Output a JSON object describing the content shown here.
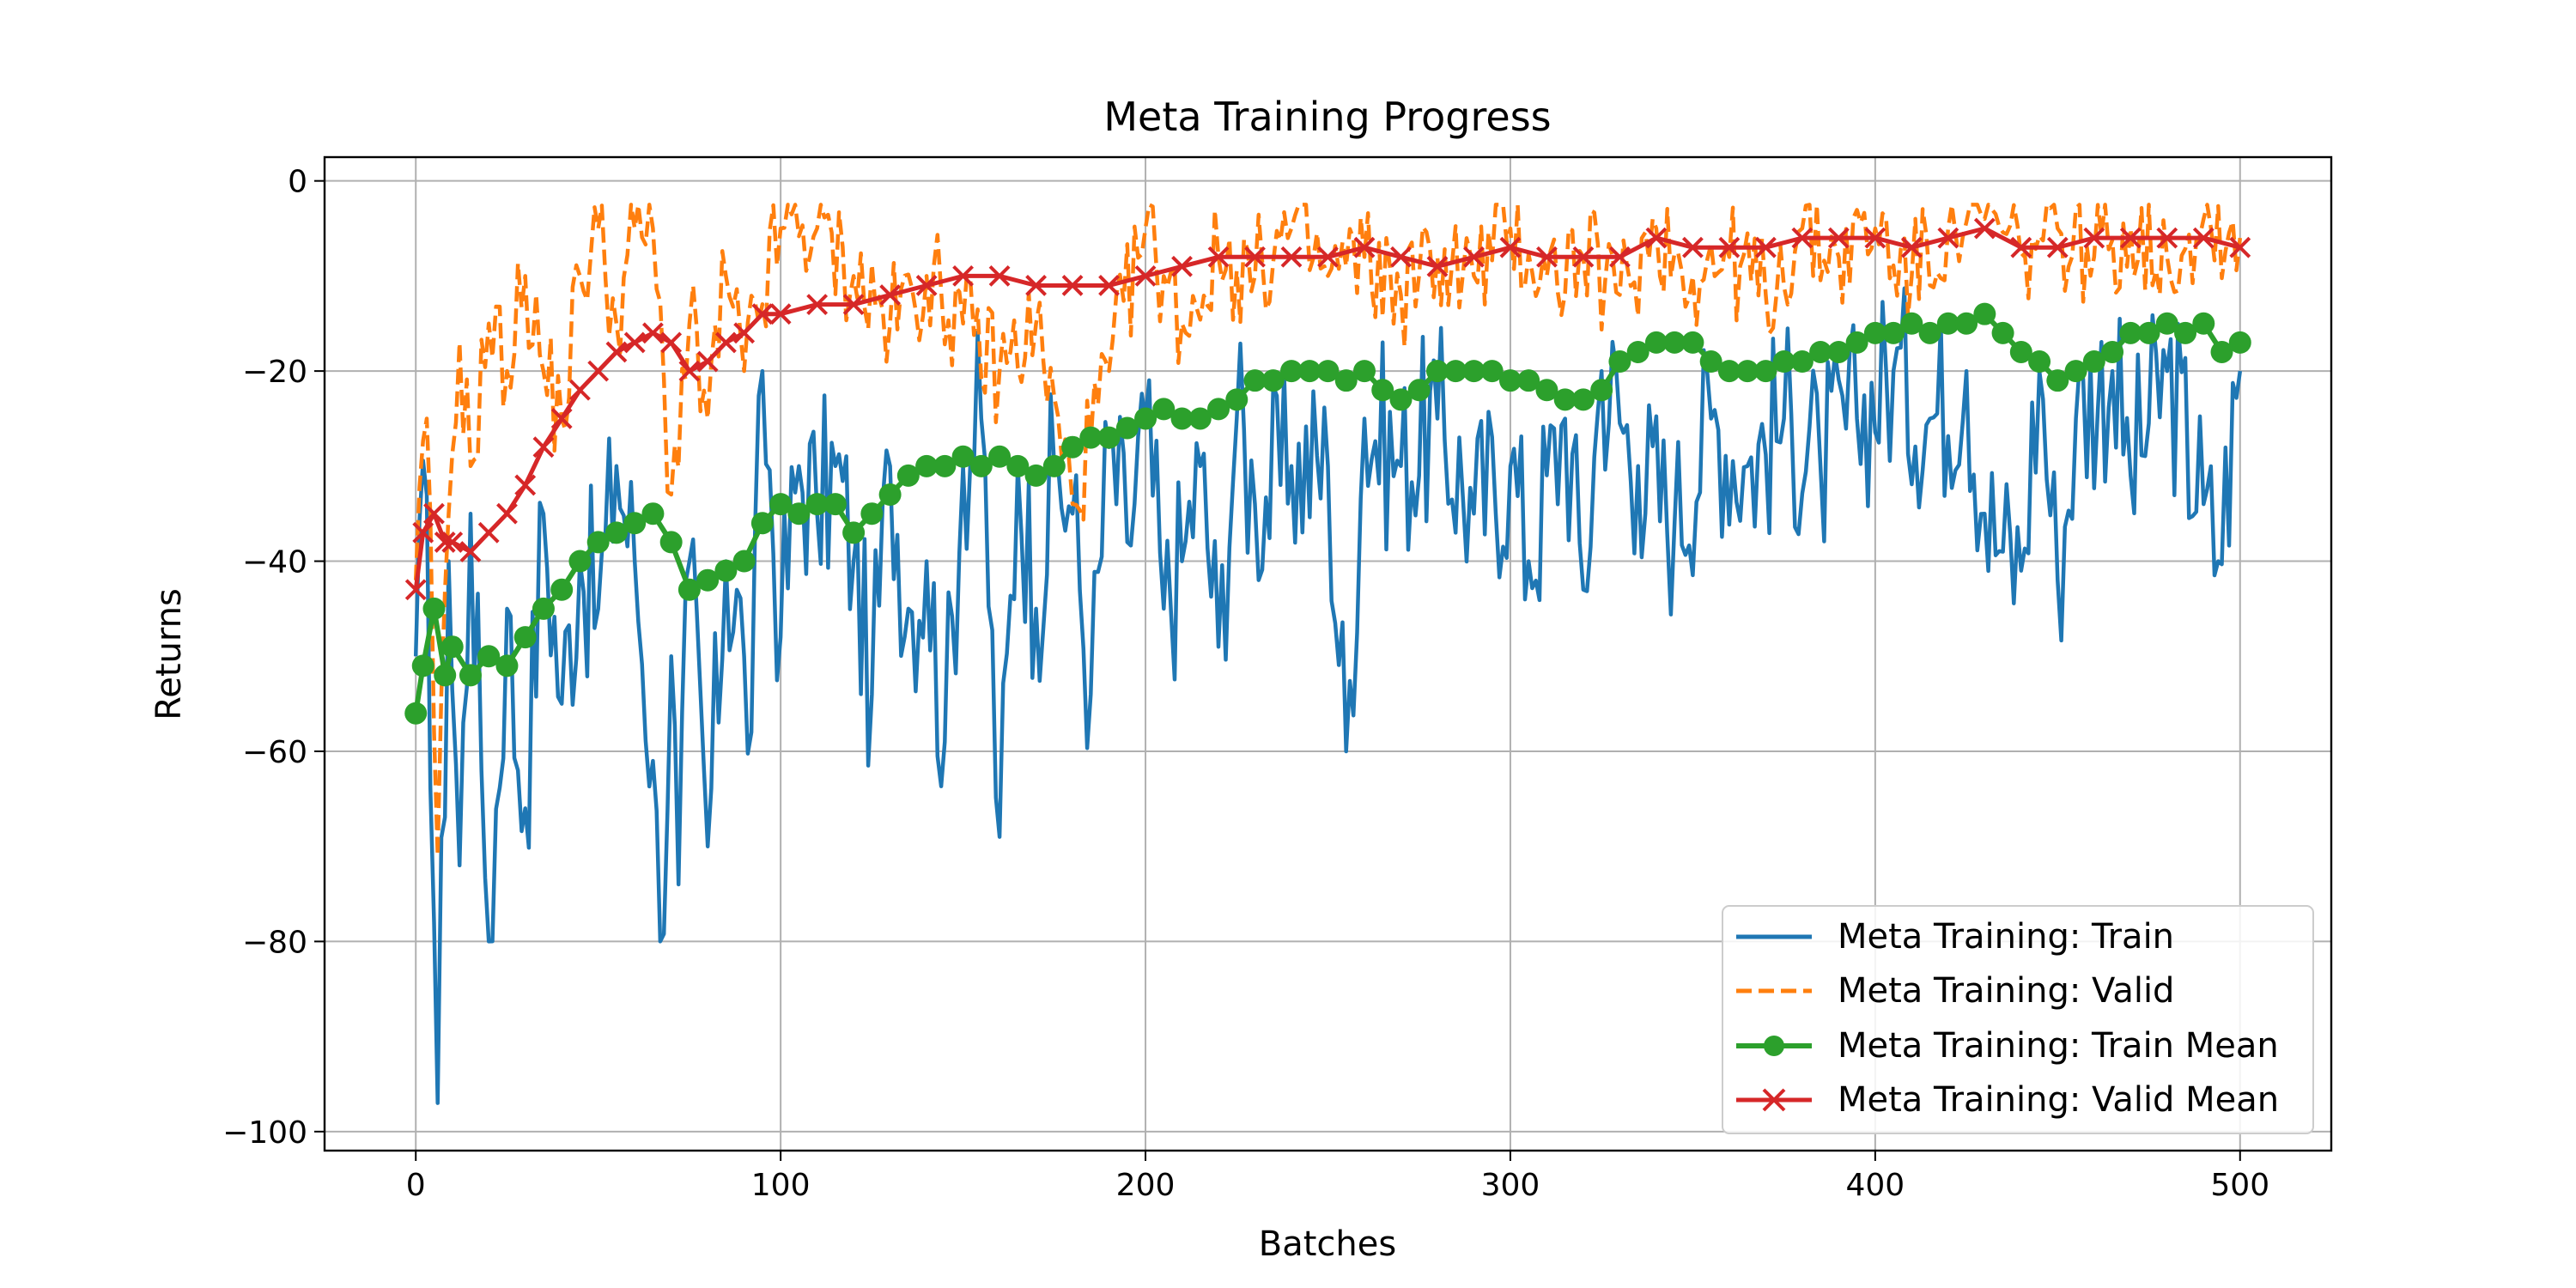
{
  "chart_data": {
    "type": "line",
    "title": "Meta Training Progress",
    "xlabel": "Batches",
    "ylabel": "Returns",
    "xlim": [
      -25,
      525
    ],
    "ylim": [
      -102,
      2.5
    ],
    "xticks": [
      0,
      100,
      200,
      300,
      400,
      500
    ],
    "yticks": [
      0,
      -20,
      -40,
      -60,
      -80,
      -100
    ],
    "grid": true,
    "legend_position": "bottom-right",
    "colors": {
      "train": "#1f77b4",
      "valid": "#ff7f0e",
      "train_mean": "#2ca02c",
      "valid_mean": "#d62728",
      "grid": "#b0b0b0"
    },
    "series": [
      {
        "name": "Meta Training: Train",
        "style": "solid",
        "keypoints": [
          [
            0,
            -50
          ],
          [
            3,
            -33
          ],
          [
            6,
            -97
          ],
          [
            9,
            -40
          ],
          [
            12,
            -72
          ],
          [
            15,
            -35
          ],
          [
            18,
            -62
          ],
          [
            20,
            -80
          ],
          [
            25,
            -45
          ],
          [
            28,
            -62
          ],
          [
            30,
            -66
          ],
          [
            35,
            -35
          ],
          [
            40,
            -55
          ],
          [
            45,
            -40
          ],
          [
            50,
            -45
          ],
          [
            55,
            -30
          ],
          [
            60,
            -40
          ],
          [
            65,
            -61
          ],
          [
            67,
            -80
          ],
          [
            70,
            -50
          ],
          [
            72,
            -74
          ],
          [
            75,
            -40
          ],
          [
            80,
            -70
          ],
          [
            85,
            -40
          ],
          [
            90,
            -50
          ],
          [
            92,
            -58
          ],
          [
            95,
            -20
          ],
          [
            100,
            -48
          ],
          [
            105,
            -30
          ],
          [
            110,
            -35
          ],
          [
            115,
            -30
          ],
          [
            120,
            -40
          ],
          [
            125,
            -54
          ],
          [
            130,
            -30
          ],
          [
            135,
            -45
          ],
          [
            140,
            -40
          ],
          [
            145,
            -59
          ],
          [
            150,
            -30
          ],
          [
            155,
            -25
          ],
          [
            160,
            -69
          ],
          [
            165,
            -30
          ],
          [
            170,
            -45
          ],
          [
            175,
            -30
          ],
          [
            180,
            -35
          ],
          [
            185,
            -54
          ],
          [
            190,
            -28
          ],
          [
            195,
            -38
          ],
          [
            200,
            -25
          ],
          [
            205,
            -45
          ],
          [
            210,
            -40
          ],
          [
            215,
            -30
          ],
          [
            220,
            -49
          ],
          [
            225,
            -25
          ],
          [
            230,
            -34
          ],
          [
            240,
            -30
          ],
          [
            250,
            -30
          ],
          [
            255,
            -60
          ],
          [
            260,
            -25
          ],
          [
            270,
            -30
          ],
          [
            280,
            -25
          ],
          [
            290,
            -35
          ],
          [
            300,
            -30
          ],
          [
            305,
            -40
          ],
          [
            315,
            -25
          ],
          [
            320,
            -43
          ],
          [
            325,
            -20
          ],
          [
            335,
            -30
          ],
          [
            345,
            -36
          ],
          [
            355,
            -25
          ],
          [
            365,
            -30
          ],
          [
            375,
            -25
          ],
          [
            385,
            -30
          ],
          [
            395,
            -25
          ],
          [
            405,
            -20
          ],
          [
            415,
            -25
          ],
          [
            425,
            -20
          ],
          [
            430,
            -35
          ],
          [
            435,
            -39
          ],
          [
            440,
            -41
          ],
          [
            445,
            -20
          ],
          [
            450,
            -42
          ],
          [
            455,
            -25
          ],
          [
            465,
            -20
          ],
          [
            470,
            -31
          ],
          [
            480,
            -20
          ],
          [
            490,
            -34
          ],
          [
            494,
            -40
          ],
          [
            500,
            -20
          ]
        ]
      },
      {
        "name": "Meta Training: Valid",
        "style": "dashed",
        "keypoints": [
          [
            0,
            -42
          ],
          [
            3,
            -25
          ],
          [
            6,
            -71
          ],
          [
            9,
            -35
          ],
          [
            12,
            -17
          ],
          [
            15,
            -30
          ],
          [
            20,
            -15
          ],
          [
            25,
            -20
          ],
          [
            30,
            -10
          ],
          [
            35,
            -20
          ],
          [
            40,
            -25
          ],
          [
            45,
            -10
          ],
          [
            50,
            -5
          ],
          [
            55,
            -15
          ],
          [
            60,
            -5
          ],
          [
            65,
            -5
          ],
          [
            70,
            -33
          ],
          [
            75,
            -15
          ],
          [
            80,
            -25
          ],
          [
            85,
            -10
          ],
          [
            90,
            -20
          ],
          [
            100,
            -5
          ],
          [
            110,
            -5
          ],
          [
            120,
            -10
          ],
          [
            130,
            -15
          ],
          [
            140,
            -10
          ],
          [
            150,
            -15
          ],
          [
            160,
            -20
          ],
          [
            170,
            -15
          ],
          [
            180,
            -34
          ],
          [
            190,
            -20
          ],
          [
            200,
            -5
          ],
          [
            210,
            -15
          ],
          [
            220,
            -8
          ],
          [
            230,
            -10
          ],
          [
            240,
            -5
          ],
          [
            250,
            -10
          ],
          [
            260,
            -8
          ],
          [
            270,
            -12
          ],
          [
            280,
            -8
          ],
          [
            290,
            -10
          ],
          [
            300,
            -5
          ],
          [
            310,
            -10
          ],
          [
            320,
            -8
          ],
          [
            330,
            -12
          ],
          [
            340,
            -5
          ],
          [
            350,
            -10
          ],
          [
            360,
            -8
          ],
          [
            370,
            -12
          ],
          [
            380,
            -5
          ],
          [
            390,
            -8
          ],
          [
            400,
            -5
          ],
          [
            410,
            -10
          ],
          [
            420,
            -5
          ],
          [
            430,
            -4
          ],
          [
            440,
            -8
          ],
          [
            450,
            -5
          ],
          [
            460,
            -8
          ],
          [
            470,
            -5
          ],
          [
            480,
            -8
          ],
          [
            490,
            -4
          ],
          [
            500,
            -6
          ]
        ]
      },
      {
        "name": "Meta Training: Train Mean",
        "style": "solid-markers-circle",
        "keypoints": [
          [
            0,
            -56
          ],
          [
            2,
            -51
          ],
          [
            5,
            -45
          ],
          [
            8,
            -52
          ],
          [
            10,
            -49
          ],
          [
            15,
            -52
          ],
          [
            20,
            -50
          ],
          [
            25,
            -51
          ],
          [
            30,
            -48
          ],
          [
            35,
            -45
          ],
          [
            40,
            -43
          ],
          [
            45,
            -40
          ],
          [
            50,
            -38
          ],
          [
            55,
            -37
          ],
          [
            60,
            -36
          ],
          [
            65,
            -35
          ],
          [
            70,
            -38
          ],
          [
            75,
            -43
          ],
          [
            80,
            -42
          ],
          [
            85,
            -41
          ],
          [
            90,
            -40
          ],
          [
            95,
            -36
          ],
          [
            100,
            -34
          ],
          [
            105,
            -35
          ],
          [
            110,
            -34
          ],
          [
            115,
            -34
          ],
          [
            120,
            -37
          ],
          [
            125,
            -35
          ],
          [
            130,
            -33
          ],
          [
            135,
            -31
          ],
          [
            140,
            -30
          ],
          [
            145,
            -30
          ],
          [
            150,
            -29
          ],
          [
            155,
            -30
          ],
          [
            160,
            -29
          ],
          [
            165,
            -30
          ],
          [
            170,
            -31
          ],
          [
            175,
            -30
          ],
          [
            180,
            -28
          ],
          [
            185,
            -27
          ],
          [
            190,
            -27
          ],
          [
            195,
            -26
          ],
          [
            200,
            -25
          ],
          [
            205,
            -24
          ],
          [
            210,
            -25
          ],
          [
            215,
            -25
          ],
          [
            220,
            -24
          ],
          [
            225,
            -23
          ],
          [
            230,
            -21
          ],
          [
            235,
            -21
          ],
          [
            240,
            -20
          ],
          [
            245,
            -20
          ],
          [
            250,
            -20
          ],
          [
            255,
            -21
          ],
          [
            260,
            -20
          ],
          [
            265,
            -22
          ],
          [
            270,
            -23
          ],
          [
            275,
            -22
          ],
          [
            280,
            -20
          ],
          [
            285,
            -20
          ],
          [
            290,
            -20
          ],
          [
            295,
            -20
          ],
          [
            300,
            -21
          ],
          [
            305,
            -21
          ],
          [
            310,
            -22
          ],
          [
            315,
            -23
          ],
          [
            320,
            -23
          ],
          [
            325,
            -22
          ],
          [
            330,
            -19
          ],
          [
            335,
            -18
          ],
          [
            340,
            -17
          ],
          [
            345,
            -17
          ],
          [
            350,
            -17
          ],
          [
            355,
            -19
          ],
          [
            360,
            -20
          ],
          [
            365,
            -20
          ],
          [
            370,
            -20
          ],
          [
            375,
            -19
          ],
          [
            380,
            -19
          ],
          [
            385,
            -18
          ],
          [
            390,
            -18
          ],
          [
            395,
            -17
          ],
          [
            400,
            -16
          ],
          [
            405,
            -16
          ],
          [
            410,
            -15
          ],
          [
            415,
            -16
          ],
          [
            420,
            -15
          ],
          [
            425,
            -15
          ],
          [
            430,
            -14
          ],
          [
            435,
            -16
          ],
          [
            440,
            -18
          ],
          [
            445,
            -19
          ],
          [
            450,
            -21
          ],
          [
            455,
            -20
          ],
          [
            460,
            -19
          ],
          [
            465,
            -18
          ],
          [
            470,
            -16
          ],
          [
            475,
            -16
          ],
          [
            480,
            -15
          ],
          [
            485,
            -16
          ],
          [
            490,
            -15
          ],
          [
            495,
            -18
          ],
          [
            500,
            -17
          ]
        ]
      },
      {
        "name": "Meta Training: Valid Mean",
        "style": "solid-markers-x",
        "keypoints": [
          [
            0,
            -43
          ],
          [
            2,
            -37
          ],
          [
            5,
            -35
          ],
          [
            8,
            -38
          ],
          [
            10,
            -38
          ],
          [
            15,
            -39
          ],
          [
            20,
            -37
          ],
          [
            25,
            -35
          ],
          [
            30,
            -32
          ],
          [
            35,
            -28
          ],
          [
            40,
            -25
          ],
          [
            45,
            -22
          ],
          [
            50,
            -20
          ],
          [
            55,
            -18
          ],
          [
            60,
            -17
          ],
          [
            65,
            -16
          ],
          [
            70,
            -17
          ],
          [
            75,
            -20
          ],
          [
            80,
            -19
          ],
          [
            85,
            -17
          ],
          [
            90,
            -16
          ],
          [
            95,
            -14
          ],
          [
            100,
            -14
          ],
          [
            110,
            -13
          ],
          [
            120,
            -13
          ],
          [
            130,
            -12
          ],
          [
            140,
            -11
          ],
          [
            150,
            -10
          ],
          [
            160,
            -10
          ],
          [
            170,
            -11
          ],
          [
            180,
            -11
          ],
          [
            190,
            -11
          ],
          [
            200,
            -10
          ],
          [
            210,
            -9
          ],
          [
            220,
            -8
          ],
          [
            230,
            -8
          ],
          [
            240,
            -8
          ],
          [
            250,
            -8
          ],
          [
            260,
            -7
          ],
          [
            270,
            -8
          ],
          [
            280,
            -9
          ],
          [
            290,
            -8
          ],
          [
            300,
            -7
          ],
          [
            310,
            -8
          ],
          [
            320,
            -8
          ],
          [
            330,
            -8
          ],
          [
            340,
            -6
          ],
          [
            350,
            -7
          ],
          [
            360,
            -7
          ],
          [
            370,
            -7
          ],
          [
            380,
            -6
          ],
          [
            390,
            -6
          ],
          [
            400,
            -6
          ],
          [
            410,
            -7
          ],
          [
            420,
            -6
          ],
          [
            430,
            -5
          ],
          [
            440,
            -7
          ],
          [
            450,
            -7
          ],
          [
            460,
            -6
          ],
          [
            470,
            -6
          ],
          [
            480,
            -6
          ],
          [
            490,
            -6
          ],
          [
            500,
            -7
          ]
        ]
      }
    ]
  }
}
